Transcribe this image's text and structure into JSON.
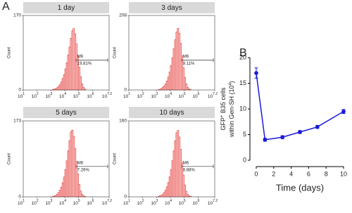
{
  "chart_data": [
    {
      "type": "histogram",
      "panel_label": "A",
      "title": "1 day",
      "ylabel": "Count",
      "xlim": [
        1,
        7.2
      ],
      "ylim": [
        0,
        170
      ],
      "yticks": [
        0,
        170
      ],
      "xticks": [
        {
          "value": 1,
          "label": "10",
          "sup": "1"
        },
        {
          "value": 2,
          "label": "10",
          "sup": "2"
        },
        {
          "value": 3,
          "label": "10",
          "sup": "3"
        },
        {
          "value": 4,
          "label": "10",
          "sup": "4"
        },
        {
          "value": 5,
          "label": "10",
          "sup": "5"
        },
        {
          "value": 6,
          "label": "10",
          "sup": "6"
        },
        {
          "value": 7.2,
          "label": "10",
          "sup": "7.2"
        }
      ],
      "bins": [
        3.0,
        3.1,
        3.2,
        3.3,
        3.4,
        3.5,
        3.6,
        3.7,
        3.8,
        3.9,
        4.0,
        4.1,
        4.2,
        4.3,
        4.4,
        4.5,
        4.6,
        4.7,
        4.8,
        4.9,
        5.0,
        5.1,
        5.2,
        5.3,
        5.4,
        5.5,
        5.6
      ],
      "values": [
        0,
        1,
        2,
        3,
        5,
        8,
        12,
        18,
        26,
        35,
        48,
        62,
        80,
        98,
        118,
        135,
        140,
        128,
        105,
        78,
        52,
        30,
        14,
        6,
        2,
        0
      ],
      "color": "#e0201b",
      "fill": "#fbdada",
      "gate": {
        "name": "M6",
        "value": 19.81,
        "value_label": "19.81%",
        "range": [
          4.8,
          7.1
        ]
      }
    },
    {
      "type": "histogram",
      "title": "3 days",
      "ylabel": "Count",
      "xlim": [
        1,
        7.2
      ],
      "ylim": [
        0,
        208
      ],
      "yticks": [
        0,
        208
      ],
      "xticks": [
        {
          "value": 1,
          "label": "10",
          "sup": "1"
        },
        {
          "value": 2,
          "label": "10",
          "sup": "2"
        },
        {
          "value": 3,
          "label": "10",
          "sup": "3"
        },
        {
          "value": 4,
          "label": "10",
          "sup": "4"
        },
        {
          "value": 5,
          "label": "10",
          "sup": "5"
        },
        {
          "value": 6,
          "label": "10",
          "sup": "6"
        },
        {
          "value": 7.2,
          "label": "10",
          "sup": "7.2"
        }
      ],
      "bins": [
        3.0,
        3.1,
        3.2,
        3.3,
        3.4,
        3.5,
        3.6,
        3.7,
        3.8,
        3.9,
        4.0,
        4.1,
        4.2,
        4.3,
        4.4,
        4.5,
        4.6,
        4.7,
        4.8,
        4.9,
        5.0,
        5.1,
        5.2,
        5.3,
        5.4,
        5.5,
        5.6
      ],
      "values": [
        0,
        1,
        2,
        4,
        7,
        11,
        17,
        25,
        36,
        50,
        68,
        90,
        115,
        140,
        162,
        172,
        158,
        130,
        95,
        62,
        35,
        17,
        7,
        3,
        1,
        0
      ],
      "color": "#e0201b",
      "fill": "#fbdada",
      "gate": {
        "name": "M6",
        "value": 9.11,
        "value_label": "9.11%",
        "range": [
          4.8,
          7.1
        ]
      }
    },
    {
      "type": "histogram",
      "title": "5 days",
      "ylabel": "Count",
      "xlim": [
        1,
        7.2
      ],
      "ylim": [
        0,
        173
      ],
      "yticks": [
        0,
        173
      ],
      "xticks": [
        {
          "value": 1,
          "label": "10",
          "sup": "1"
        },
        {
          "value": 2,
          "label": "10",
          "sup": "2"
        },
        {
          "value": 3,
          "label": "10",
          "sup": "3"
        },
        {
          "value": 4,
          "label": "10",
          "sup": "4"
        },
        {
          "value": 5,
          "label": "10",
          "sup": "5"
        },
        {
          "value": 6,
          "label": "10",
          "sup": "6"
        },
        {
          "value": 7.2,
          "label": "10",
          "sup": "7.2"
        }
      ],
      "bins": [
        3.0,
        3.1,
        3.2,
        3.3,
        3.4,
        3.5,
        3.6,
        3.7,
        3.8,
        3.9,
        4.0,
        4.1,
        4.2,
        4.3,
        4.4,
        4.5,
        4.6,
        4.7,
        4.8,
        4.9,
        5.0,
        5.1,
        5.2,
        5.3,
        5.4,
        5.5,
        5.6
      ],
      "values": [
        0,
        1,
        2,
        3,
        6,
        10,
        15,
        22,
        32,
        45,
        62,
        82,
        105,
        128,
        148,
        152,
        138,
        110,
        80,
        52,
        28,
        13,
        6,
        2,
        1,
        0
      ],
      "color": "#e0201b",
      "fill": "#fbdada",
      "gate": {
        "name": "M6",
        "value": 7.26,
        "value_label": "7.26%",
        "range": [
          4.8,
          7.1
        ]
      }
    },
    {
      "type": "histogram",
      "title": "10 days",
      "ylabel": "Count",
      "xlim": [
        1,
        7.2
      ],
      "ylim": [
        0,
        160
      ],
      "yticks": [
        0,
        160
      ],
      "xticks": [
        {
          "value": 1,
          "label": "10",
          "sup": "1"
        },
        {
          "value": 2,
          "label": "10",
          "sup": "2"
        },
        {
          "value": 3,
          "label": "10",
          "sup": "3"
        },
        {
          "value": 4,
          "label": "10",
          "sup": "4"
        },
        {
          "value": 5,
          "label": "10",
          "sup": "5"
        },
        {
          "value": 6,
          "label": "10",
          "sup": "6"
        },
        {
          "value": 7.2,
          "label": "10",
          "sup": "7.2"
        }
      ],
      "bins": [
        3.0,
        3.1,
        3.2,
        3.3,
        3.4,
        3.5,
        3.6,
        3.7,
        3.8,
        3.9,
        4.0,
        4.1,
        4.2,
        4.3,
        4.4,
        4.5,
        4.6,
        4.7,
        4.8,
        4.9,
        5.0,
        5.1,
        5.2,
        5.3,
        5.4,
        5.5,
        5.6
      ],
      "values": [
        0,
        1,
        2,
        3,
        5,
        9,
        14,
        21,
        30,
        42,
        57,
        76,
        97,
        118,
        135,
        140,
        126,
        100,
        72,
        46,
        25,
        12,
        5,
        2,
        1,
        0
      ],
      "color": "#e0201b",
      "fill": "#fbdada",
      "gate": {
        "name": "M6",
        "value": 8.88,
        "value_label": "8.88%",
        "range": [
          4.8,
          7.1
        ]
      }
    },
    {
      "type": "line",
      "panel_label": "B",
      "ylabel": [
        "GFP",
        "+",
        " B35 cells"
      ],
      "ylabel2": [
        "within Gen-SH (10",
        "4",
        ")"
      ],
      "xlabel": "Time (days)",
      "x": [
        0,
        1,
        3,
        5,
        7,
        10
      ],
      "values": [
        17,
        4,
        4.5,
        5.5,
        6.5,
        9.5
      ],
      "errors": [
        1,
        0.3,
        0.3,
        0.3,
        0.3,
        0.4
      ],
      "color": "#1a1ad6",
      "xlim": [
        0,
        10
      ],
      "xticks": [
        0,
        2,
        4,
        6,
        8,
        10
      ],
      "ylim": [
        0,
        20
      ],
      "yticks": [
        0,
        5,
        10,
        15,
        20
      ]
    }
  ]
}
